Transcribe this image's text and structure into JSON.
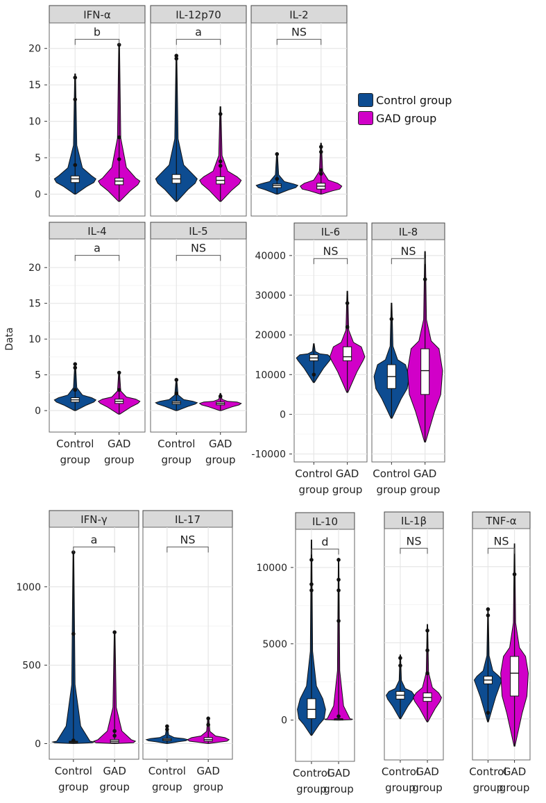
{
  "chart_data": {
    "type": "violin",
    "ylabel": "Data",
    "groups": [
      "Control group",
      "GAD group"
    ],
    "group_tick_labels": [
      [
        "Control",
        "group"
      ],
      [
        "GAD",
        "group"
      ]
    ],
    "series_colors": {
      "Control group": "#0d4c91",
      "GAD group": "#d100c8"
    },
    "legend": {
      "position": "right-top",
      "entries": [
        "Control group",
        "GAD group"
      ]
    },
    "grid": true,
    "panel_groups": [
      {
        "id": "row1",
        "ylim": [
          -3,
          23.5
        ],
        "yticks": [
          0,
          5,
          10,
          15,
          20
        ],
        "show_xlabels": false,
        "panels": [
          {
            "title": "IFN-α",
            "significance": "b",
            "control": {
              "min": 0,
              "max": 16.5,
              "q1": 1.6,
              "median": 2.1,
              "q3": 2.5,
              "outliers": [
                4,
                13,
                16
              ]
            },
            "gad": {
              "min": -1,
              "max": 20.5,
              "q1": 1.3,
              "median": 1.8,
              "q3": 2.2,
              "outliers": [
                4.8,
                7.8,
                20.5
              ]
            }
          },
          {
            "title": "IL-12p70",
            "significance": "a",
            "control": {
              "min": -1,
              "max": 19,
              "q1": 1.5,
              "median": 2.1,
              "q3": 2.7,
              "outliers": [
                18.6,
                19
              ]
            },
            "gad": {
              "min": -1,
              "max": 12,
              "q1": 1.4,
              "median": 1.9,
              "q3": 2.4,
              "outliers": [
                3.9,
                4.5,
                11
              ]
            }
          },
          {
            "title": "IL-2",
            "significance": "NS",
            "control": {
              "min": 0,
              "max": 5.6,
              "q1": 0.9,
              "median": 1.2,
              "q3": 1.4,
              "outliers": [
                2.1,
                5.5
              ]
            },
            "gad": {
              "min": 0,
              "max": 7,
              "q1": 0.7,
              "median": 1.1,
              "q3": 1.5,
              "outliers": [
                2.8,
                3.3,
                5.8,
                6.5
              ]
            }
          }
        ]
      },
      {
        "id": "row2",
        "ylim": [
          -3,
          24
        ],
        "yticks": [
          0,
          5,
          10,
          15,
          20
        ],
        "show_xlabels": true,
        "panels": [
          {
            "title": "IL-4",
            "significance": "a",
            "control": {
              "min": 0,
              "max": 6.5,
              "q1": 1.2,
              "median": 1.5,
              "q3": 1.8,
              "outliers": [
                2.9,
                6,
                6.5
              ]
            },
            "gad": {
              "min": -0.5,
              "max": 5.4,
              "q1": 1.0,
              "median": 1.3,
              "q3": 1.6,
              "outliers": [
                2.9,
                5.3
              ]
            }
          },
          {
            "title": "IL-5",
            "significance": "NS",
            "control": {
              "min": 0,
              "max": 4.3,
              "q1": 0.9,
              "median": 1.1,
              "q3": 1.3,
              "outliers": [
                2.4,
                4.3
              ]
            },
            "gad": {
              "min": 0,
              "max": 2.4,
              "q1": 0.8,
              "median": 1.0,
              "q3": 1.2,
              "outliers": [
                2
              ]
            }
          }
        ]
      },
      {
        "id": "row2b",
        "ylim": [
          -12000,
          44000
        ],
        "yticks": [
          -10000,
          0,
          10000,
          20000,
          30000,
          40000
        ],
        "show_xlabels": true,
        "panels": [
          {
            "title": "IL-6",
            "significance": "NS",
            "control": {
              "min": 8000,
              "max": 17800,
              "q1": 13500,
              "median": 14200,
              "q3": 15000,
              "outliers": [
                10000
              ]
            },
            "gad": {
              "min": 5500,
              "max": 31000,
              "q1": 13500,
              "median": 14500,
              "q3": 17000,
              "outliers": [
                22000,
                28000
              ]
            }
          },
          {
            "title": "IL-8",
            "significance": "NS",
            "control": {
              "min": -1000,
              "max": 28000,
              "q1": 6500,
              "median": 9500,
              "q3": 12500,
              "outliers": [
                24000
              ]
            },
            "gad": {
              "min": -7000,
              "max": 41000,
              "q1": 5000,
              "median": 11000,
              "q3": 16500,
              "outliers": [
                34000
              ]
            }
          }
        ]
      },
      {
        "id": "row3a",
        "ylim": [
          -100,
          1380
        ],
        "yticks": [
          0,
          500,
          1000
        ],
        "show_xlabels": true,
        "panels": [
          {
            "title": "IFN-γ",
            "significance": "a",
            "control": {
              "min": 0,
              "max": 1220,
              "q1": 5,
              "median": 10,
              "q3": 15,
              "outliers": [
                20,
                700,
                1220
              ]
            },
            "gad": {
              "min": 0,
              "max": 710,
              "q1": 5,
              "median": 15,
              "q3": 25,
              "outliers": [
                50,
                80,
                710
              ]
            }
          },
          {
            "title": "IL-17",
            "significance": "NS",
            "control": {
              "min": 0,
              "max": 110,
              "q1": 18,
              "median": 25,
              "q3": 32,
              "outliers": [
                90,
                110
              ]
            },
            "gad": {
              "min": 0,
              "max": 170,
              "q1": 15,
              "median": 25,
              "q3": 38,
              "outliers": [
                120,
                160
              ]
            }
          }
        ]
      },
      {
        "id": "row3b",
        "ylim": [
          -2700,
          12500
        ],
        "yticks": [
          0,
          5000,
          10000
        ],
        "show_xlabels": true,
        "panels": [
          {
            "title": "IL-10",
            "significance": "d",
            "control": {
              "min": -1000,
              "max": 11800,
              "q1": 100,
              "median": 700,
              "q3": 1400,
              "outliers": [
                8500,
                8900,
                10500
              ]
            },
            "gad": {
              "min": 0,
              "max": 10600,
              "q1": 30,
              "median": 60,
              "q3": 90,
              "outliers": [
                250,
                6500,
                8500,
                9200,
                10500
              ]
            }
          }
        ]
      },
      {
        "id": "row3c",
        "ylim": [
          -2700,
          12500
        ],
        "yticks": [],
        "show_xlabels": true,
        "panels": [
          {
            "title": "IL-1β",
            "significance": "NS",
            "control": {
              "min": 0,
              "max": 4200,
              "q1": 1300,
              "median": 1550,
              "q3": 1800,
              "outliers": [
                3500,
                4000
              ]
            },
            "gad": {
              "min": -200,
              "max": 6200,
              "q1": 1150,
              "median": 1400,
              "q3": 1700,
              "outliers": [
                3000,
                4500,
                5800
              ]
            }
          }
        ]
      },
      {
        "id": "row3d",
        "ylim": [
          -2700,
          12500
        ],
        "yticks": [],
        "show_xlabels": true,
        "panels": [
          {
            "title": "TNF-α",
            "significance": "NS",
            "control": {
              "min": -200,
              "max": 7300,
              "q1": 2300,
              "median": 2550,
              "q3": 2800,
              "outliers": [
                400,
                6800,
                7200
              ]
            },
            "gad": {
              "min": -1800,
              "max": 11500,
              "q1": 1500,
              "median": 3000,
              "q3": 4100,
              "outliers": [
                9500
              ]
            }
          }
        ]
      }
    ]
  }
}
